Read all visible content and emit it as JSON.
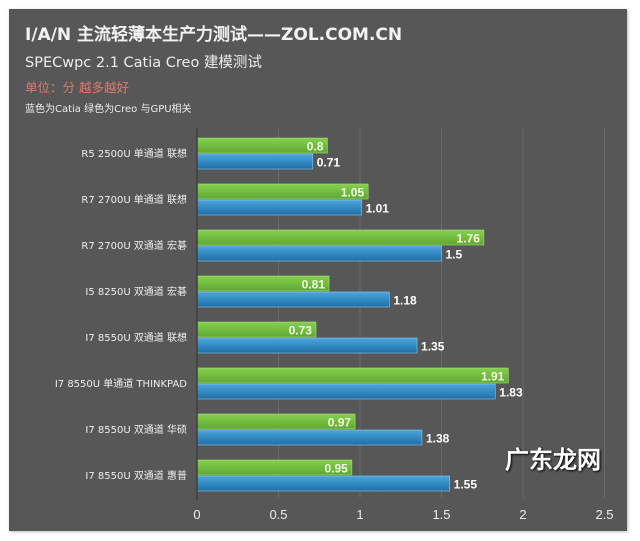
{
  "chart_data": {
    "type": "bar",
    "orientation": "horizontal",
    "title": "I/A/N 主流轻薄本生产力测试——ZOL.COM.CN",
    "subtitle": "SPECwpc 2.1 Catia Creo 建模测试",
    "unit_note": "单位：分 越多越好",
    "legend_note": "蓝色为Catia 绿色为Creo  与GPU相关",
    "categories": [
      "R5 2500U 单通道 联想",
      "R7 2700U 单通道 联想",
      "R7 2700U 双通道 宏碁",
      "I5 8250U 双通道 宏碁",
      "I7 8550U 双通道 联想",
      "I7 8550U 单通道 THINKPAD",
      "I7 8550U 双通道 华硕",
      "I7 8550U 双通道 惠普"
    ],
    "series": [
      {
        "key": "creo",
        "color": "#6fbf3f",
        "values": [
          0.8,
          1.05,
          1.76,
          0.81,
          0.73,
          1.91,
          0.97,
          0.95
        ]
      },
      {
        "key": "catia",
        "color": "#2e86c1",
        "values": [
          0.71,
          1.01,
          1.5,
          1.18,
          1.35,
          1.83,
          1.38,
          1.55
        ]
      }
    ],
    "xlim": [
      0,
      2.5
    ],
    "xticks": [
      "0",
      "0.5",
      "1",
      "1.5",
      "2",
      "2.5"
    ],
    "grid": true
  },
  "watermark": "广东龙网"
}
